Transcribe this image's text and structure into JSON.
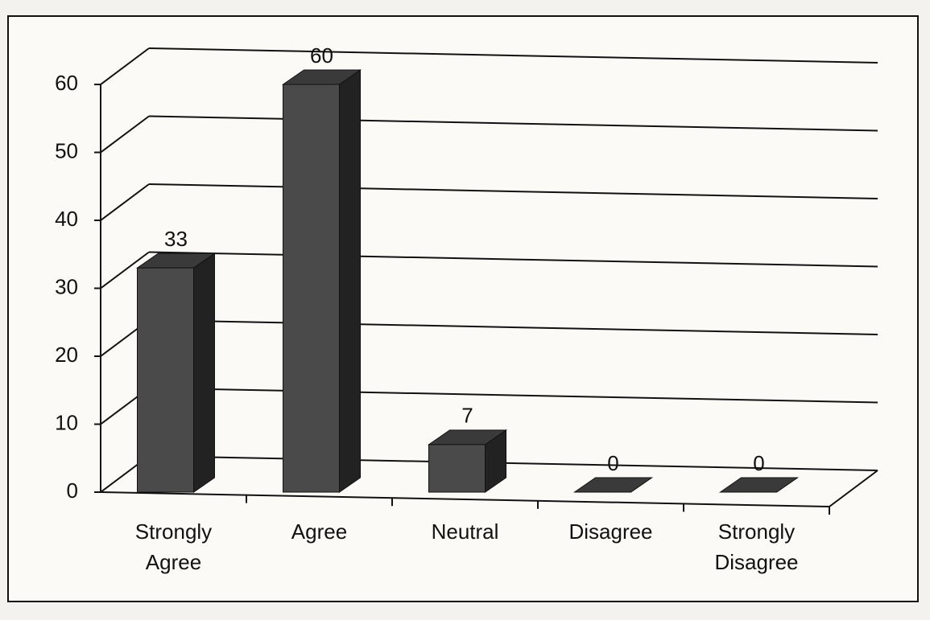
{
  "chart_data": {
    "type": "bar3d",
    "categories": [
      "Strongly Agree",
      "Agree",
      "Neutral",
      "Disagree",
      "Strongly Disagree"
    ],
    "values": [
      33,
      60,
      7,
      0,
      0
    ],
    "color": "#4a4a4a",
    "ylim": [
      0,
      60
    ],
    "yticks": [
      0,
      10,
      20,
      30,
      40,
      50,
      60
    ],
    "grid": true
  }
}
